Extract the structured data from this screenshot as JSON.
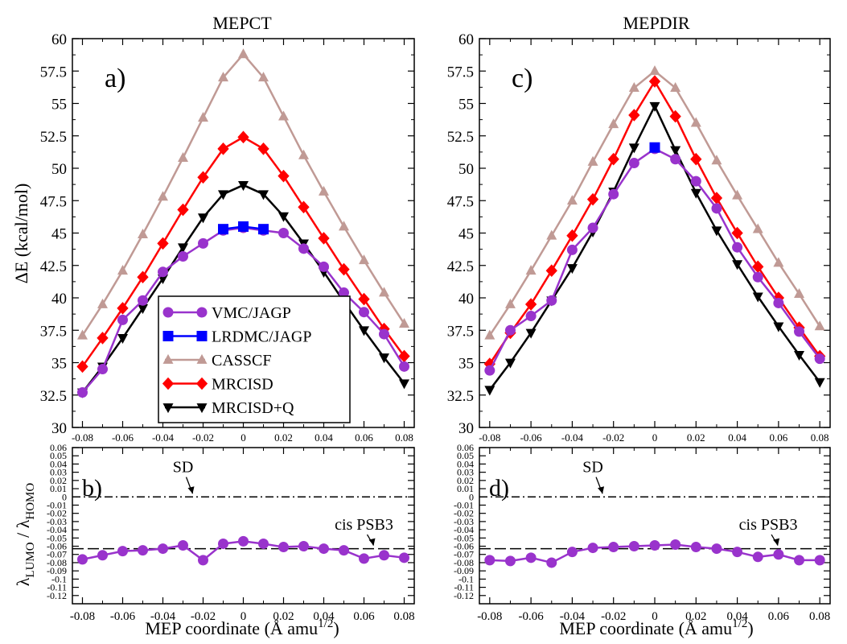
{
  "figure": {
    "xlabel_prefix": "MEP coordinate (Å amu",
    "xlabel_exp": "1/2",
    "xlabel_suffix": ")",
    "top_ylabel": "ΔE (kcal/mol)",
    "bottom_ylabel_main": "λ",
    "bottom_ylabel_sub1": "LUMO",
    "bottom_ylabel_sep": " / λ",
    "bottom_ylabel_sub2": "HOMO"
  },
  "legend": [
    {
      "label": "VMC/JAGP",
      "color": "#9933CC",
      "marker": "circle"
    },
    {
      "label": "LRDMC/JAGP",
      "color": "#0000FF",
      "marker": "square"
    },
    {
      "label": "CASSCF",
      "color": "#C09A95",
      "marker": "triangle-up"
    },
    {
      "label": "MRCISD",
      "color": "#FF0000",
      "marker": "diamond"
    },
    {
      "label": "MRCISD+Q",
      "color": "#000000",
      "marker": "triangle-down"
    }
  ],
  "chart_data": [
    {
      "id": "a",
      "type": "line",
      "title": "MEPCT",
      "panel_label": "a)",
      "ylabel": "ΔE (kcal/mol)",
      "xlim": [
        -0.085,
        0.085
      ],
      "ylim": [
        30,
        60
      ],
      "xticks": [
        "-0.08",
        "-0.06",
        "-0.04",
        "-0.02",
        "0",
        "0.02",
        "0.04",
        "0.06",
        "0.08"
      ],
      "yticks": [
        "30",
        "32.5",
        "35",
        "37.5",
        "40",
        "42.5",
        "45",
        "47.5",
        "50",
        "52.5",
        "55",
        "57.5",
        "60"
      ],
      "x": [
        -0.08,
        -0.07,
        -0.06,
        -0.05,
        -0.04,
        -0.03,
        -0.02,
        -0.01,
        0,
        0.01,
        0.02,
        0.03,
        0.04,
        0.05,
        0.06,
        0.07,
        0.08
      ],
      "series": [
        {
          "name": "CASSCF",
          "values": [
            37.1,
            39.5,
            42.1,
            44.9,
            47.8,
            50.8,
            53.9,
            57.0,
            58.8,
            57.0,
            54.0,
            51.0,
            48.2,
            45.5,
            42.9,
            40.4,
            38.0
          ]
        },
        {
          "name": "MRCISD",
          "values": [
            34.7,
            36.9,
            39.2,
            41.6,
            44.2,
            46.8,
            49.3,
            51.5,
            52.4,
            51.5,
            49.4,
            47.0,
            44.6,
            42.2,
            39.9,
            37.6,
            35.5
          ]
        },
        {
          "name": "MRCISD+Q",
          "values": [
            32.7,
            34.7,
            36.9,
            39.2,
            41.5,
            43.9,
            46.2,
            48.0,
            48.7,
            48.0,
            46.3,
            44.2,
            42.0,
            39.7,
            37.5,
            35.4,
            33.4
          ]
        },
        {
          "name": "VMC/JAGP",
          "values": [
            32.7,
            34.5,
            38.3,
            39.8,
            42.0,
            43.2,
            44.2,
            45.2,
            45.4,
            45.2,
            45.0,
            43.8,
            42.4,
            40.4,
            38.9,
            37.2,
            34.7
          ]
        },
        {
          "name": "LRDMC/JAGP",
          "values": [
            null,
            null,
            null,
            null,
            null,
            null,
            null,
            45.3,
            45.5,
            45.3,
            null,
            null,
            null,
            null,
            null,
            null,
            null
          ]
        }
      ]
    },
    {
      "id": "c",
      "type": "line",
      "title": "MEPDIR",
      "panel_label": "c)",
      "xlim": [
        -0.085,
        0.085
      ],
      "ylim": [
        30,
        60
      ],
      "xticks": [
        "-0.08",
        "-0.06",
        "-0.04",
        "-0.02",
        "0",
        "0.02",
        "0.04",
        "0.06",
        "0.08"
      ],
      "yticks": [
        "30",
        "32.5",
        "35",
        "37.5",
        "40",
        "42.5",
        "45",
        "47.5",
        "50",
        "52.5",
        "55",
        "57.5",
        "60"
      ],
      "x": [
        -0.08,
        -0.07,
        -0.06,
        -0.05,
        -0.04,
        -0.03,
        -0.02,
        -0.01,
        0,
        0.01,
        0.02,
        0.03,
        0.04,
        0.05,
        0.06,
        0.07,
        0.08
      ],
      "series": [
        {
          "name": "CASSCF",
          "values": [
            37.1,
            39.5,
            42.1,
            44.8,
            47.5,
            50.5,
            53.4,
            56.2,
            57.5,
            56.2,
            53.5,
            50.6,
            47.9,
            45.3,
            42.7,
            40.3,
            37.8
          ]
        },
        {
          "name": "MRCISD",
          "values": [
            34.9,
            37.3,
            39.5,
            42.1,
            44.8,
            47.6,
            50.7,
            54.1,
            56.7,
            54.0,
            50.7,
            47.7,
            45.0,
            42.4,
            40.0,
            37.7,
            35.5
          ]
        },
        {
          "name": "MRCISD+Q",
          "values": [
            32.9,
            35.0,
            37.3,
            39.8,
            42.3,
            45.1,
            48.2,
            51.6,
            54.8,
            51.4,
            48.1,
            45.2,
            42.6,
            40.1,
            37.8,
            35.6,
            33.5
          ]
        },
        {
          "name": "VMC/JAGP",
          "values": [
            34.4,
            37.5,
            38.6,
            39.8,
            43.7,
            45.4,
            48.0,
            50.4,
            51.5,
            50.7,
            49.0,
            46.9,
            43.9,
            41.6,
            39.6,
            37.4,
            35.3
          ]
        },
        {
          "name": "LRDMC/JAGP",
          "values": [
            null,
            null,
            null,
            null,
            null,
            null,
            null,
            null,
            51.6,
            null,
            null,
            null,
            null,
            null,
            null,
            null,
            null
          ]
        }
      ]
    },
    {
      "id": "b",
      "type": "line",
      "panel_label": "b)",
      "ylabel": "λLUMO / λHOMO",
      "xlim": [
        -0.085,
        0.085
      ],
      "ylim": [
        -0.13,
        0.06
      ],
      "xticks": [
        "-0.08",
        "-0.06",
        "-0.04",
        "-0.02",
        "0",
        "0.02",
        "0.04",
        "0.06",
        "0.08"
      ],
      "yticks": [
        "0.06",
        "0.05",
        "0.04",
        "0.03",
        "0.02",
        "0.01",
        "0",
        "-0.01",
        "-0.02",
        "-0.03",
        "-0.04",
        "-0.05",
        "-0.06",
        "-0.07",
        "-0.08",
        "-0.09",
        "-0.1",
        "-0.11",
        "-0.12"
      ],
      "x": [
        -0.08,
        -0.07,
        -0.06,
        -0.05,
        -0.04,
        -0.03,
        -0.02,
        -0.01,
        0,
        0.01,
        0.02,
        0.03,
        0.04,
        0.05,
        0.06,
        0.07,
        0.08
      ],
      "series": [
        {
          "name": "VMC/JAGP",
          "values": [
            -0.076,
            -0.071,
            -0.066,
            -0.065,
            -0.063,
            -0.059,
            -0.077,
            -0.057,
            -0.054,
            -0.057,
            -0.061,
            -0.06,
            -0.063,
            -0.065,
            -0.075,
            -0.071,
            -0.074
          ]
        }
      ],
      "reference_lines": [
        {
          "label": "SD",
          "y": 0,
          "style": "dashdot",
          "label_x": -0.03,
          "label_y": 0.03
        },
        {
          "label": "cis PSB3",
          "y": -0.063,
          "style": "dashed",
          "label_x": 0.06,
          "label_y": -0.04
        }
      ]
    },
    {
      "id": "d",
      "type": "line",
      "panel_label": "d)",
      "xlim": [
        -0.085,
        0.085
      ],
      "ylim": [
        -0.13,
        0.06
      ],
      "xticks": [
        "-0.08",
        "-0.06",
        "-0.04",
        "-0.02",
        "0",
        "0.02",
        "0.04",
        "0.06",
        "0.08"
      ],
      "yticks": [
        "0.06",
        "0.05",
        "0.04",
        "0.03",
        "0.02",
        "0.01",
        "0",
        "-0.01",
        "-0.02",
        "-0.03",
        "-0.04",
        "-0.05",
        "-0.06",
        "-0.07",
        "-0.08",
        "-0.09",
        "-0.1",
        "-0.11",
        "-0.12"
      ],
      "x": [
        -0.08,
        -0.07,
        -0.06,
        -0.05,
        -0.04,
        -0.03,
        -0.02,
        -0.01,
        0,
        0.01,
        0.02,
        0.03,
        0.04,
        0.05,
        0.06,
        0.07,
        0.08
      ],
      "series": [
        {
          "name": "VMC/JAGP",
          "values": [
            -0.077,
            -0.078,
            -0.074,
            -0.08,
            -0.067,
            -0.062,
            -0.061,
            -0.06,
            -0.059,
            -0.058,
            -0.061,
            -0.063,
            -0.067,
            -0.073,
            -0.07,
            -0.077,
            -0.077
          ]
        }
      ],
      "reference_lines": [
        {
          "label": "SD",
          "y": 0,
          "style": "dashdot",
          "label_x": -0.03,
          "label_y": 0.03
        },
        {
          "label": "cis PSB3",
          "y": -0.063,
          "style": "dashed",
          "label_x": 0.055,
          "label_y": -0.04
        }
      ]
    }
  ]
}
